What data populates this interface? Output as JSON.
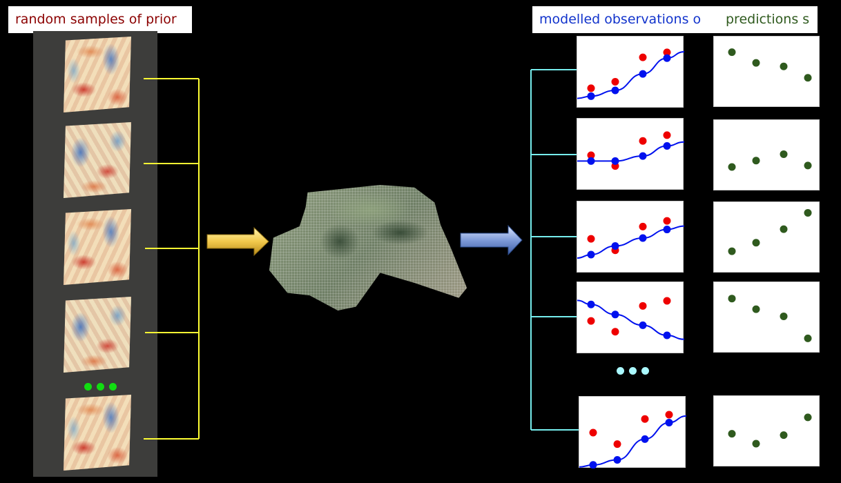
{
  "titles": {
    "prior": "random samples of prior",
    "observations": "modelled observations o",
    "predictions": "predictions s"
  },
  "colors": {
    "prior_title": "#8b0000",
    "obs_title": "#1133cc",
    "pred_title": "#2f5a1e",
    "observed_points": "#ee0000",
    "modelled_points": "#0011ee",
    "prediction_points": "#2f5a1e",
    "sample_connector": "#ffff33",
    "obs_connector": "#77eeee",
    "arrow_left": "#f2c94c",
    "arrow_right": "#7f9bd8"
  },
  "icons": {
    "ellipsis_left": "ellipsis-icon",
    "ellipsis_right": "ellipsis-icon",
    "arrow_left": "arrow-right-icon",
    "arrow_right": "arrow-right-icon"
  },
  "chart_data": [
    {
      "type": "scatter",
      "observed": [
        0.28,
        0.37,
        0.71,
        0.78
      ],
      "modelled": [
        0.17,
        0.25,
        0.48,
        0.7
      ],
      "predictions": [
        0.78,
        0.63,
        0.58,
        0.42
      ]
    },
    {
      "type": "scatter",
      "observed": [
        0.49,
        0.34,
        0.69,
        0.77
      ],
      "modelled": [
        0.41,
        0.41,
        0.48,
        0.62
      ],
      "predictions": [
        0.34,
        0.43,
        0.52,
        0.36
      ]
    },
    {
      "type": "scatter",
      "observed": [
        0.48,
        0.32,
        0.65,
        0.73
      ],
      "modelled": [
        0.26,
        0.38,
        0.49,
        0.61
      ],
      "predictions": [
        0.31,
        0.43,
        0.62,
        0.85
      ]
    },
    {
      "type": "scatter",
      "observed": [
        0.46,
        0.31,
        0.67,
        0.74
      ],
      "modelled": [
        0.69,
        0.55,
        0.4,
        0.26
      ],
      "predictions": [
        0.77,
        0.62,
        0.52,
        0.21
      ]
    },
    {
      "type": "scatter",
      "observed": [
        0.5,
        0.34,
        0.69,
        0.75
      ],
      "modelled": [
        0.05,
        0.12,
        0.41,
        0.64
      ],
      "predictions": [
        0.47,
        0.33,
        0.45,
        0.7
      ]
    }
  ]
}
